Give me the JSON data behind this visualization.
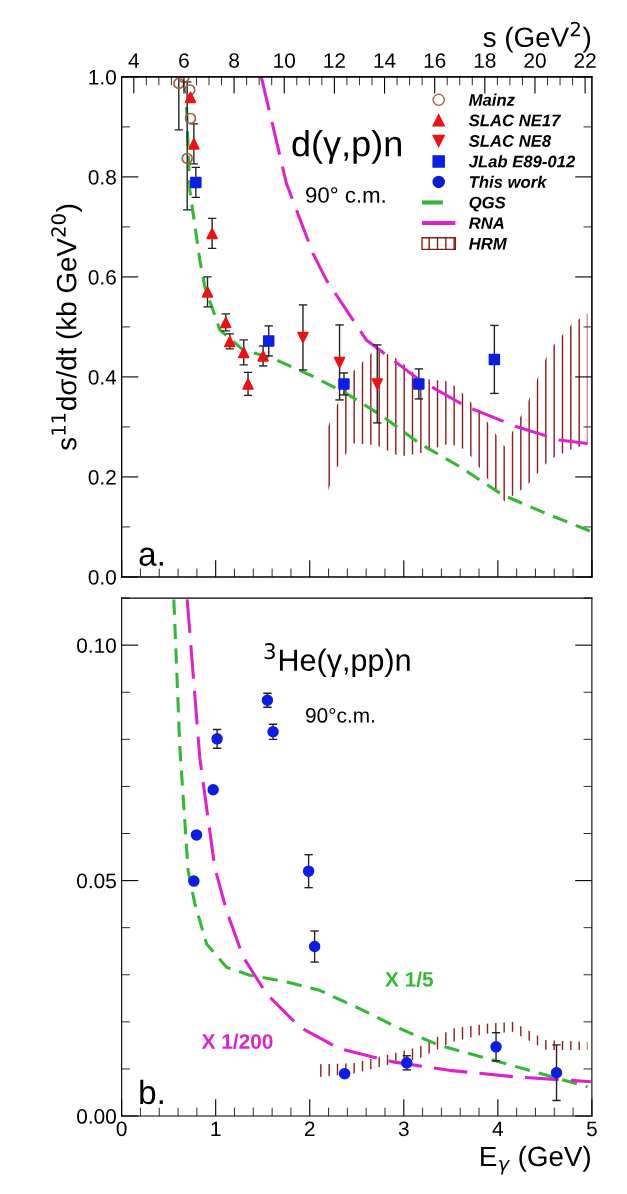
{
  "chart_data": [
    {
      "type": "scatter",
      "ylabel": "s$^{11}$dσ/dt (kb GeV$^{20}$)",
      "x2label": "s (GeV$^{2}$)",
      "xlim": [
        0,
        5
      ],
      "xticks": [
        0,
        1,
        2,
        3,
        4,
        5
      ],
      "ylim": [
        0,
        1.0
      ],
      "yticks": [
        {
          "value": 0,
          "label": "0.0"
        },
        0.2,
        0.4,
        0.6,
        0.8,
        {
          "value": 1.0,
          "label": "1.0"
        }
      ],
      "x2lim": [
        3.515,
        22.27
      ],
      "x2ticks": [
        4,
        6,
        8,
        10,
        12,
        14,
        16,
        18,
        20,
        22
      ],
      "tick_labels": "y",
      "legend": "top right",
      "grid": false,
      "annotations": [
        "d(γ,p)n",
        "90° c.m.",
        "a."
      ],
      "series": [
        {
          "name": "Mainz",
          "marker": "open_circle",
          "color": "#a0604a",
          "x": [
            0.608,
            0.661,
            0.725,
            0.732,
            0.697
          ],
          "values": [
            0.987,
            0.999,
            0.974,
            0.917,
            0.837
          ],
          "errors": [
            [
              0.894,
              1.0
            ],
            null,
            null,
            null,
            [
              0.734,
              0.99
            ]
          ]
        },
        {
          "name": "SLAC NE17",
          "marker": "triangle",
          "color": "#ee1111",
          "x": [
            0.732,
            0.768,
            0.962,
            0.913,
            1.107,
            1.15,
            1.298,
            1.344,
            1.504
          ],
          "values": [
            0.959,
            0.866,
            0.687,
            0.57,
            0.509,
            0.471,
            0.449,
            0.386,
            0.442
          ],
          "errors": [
            null,
            0.04,
            0.03,
            0.03,
            0.017,
            0.015,
            0.025,
            0.023,
            0.02
          ]
        },
        {
          "name": "SLAC NE8",
          "marker": "triangle_down",
          "color": "#ee1111",
          "x": [
            1.928,
            2.317,
            2.718
          ],
          "values": [
            0.479,
            0.429,
            0.386
          ],
          "errors": [
            0.065,
            0.075,
            0.078
          ]
        },
        {
          "name": "JLab E89-012",
          "marker": "square",
          "color": "#0a1ee6",
          "x": [
            0.789,
            1.564,
            2.364,
            3.16,
            3.963
          ],
          "values": [
            0.789,
            0.472,
            0.386,
            0.386,
            0.435
          ],
          "errors": [
            0.03,
            0.03,
            0.022,
            0.03,
            0.068
          ]
        },
        {
          "name": "This work",
          "marker": "circle",
          "color": "#0a1ecc"
        },
        {
          "name": "QGS",
          "type": "line",
          "line_style": "dashed",
          "color": "#33b833",
          "x": [
            0.69,
            0.725,
            0.831,
            0.884,
            1.044,
            1.291,
            1.61,
            2.034,
            2.39,
            2.777,
            3.167,
            3.591,
            4.051,
            4.512,
            4.99
          ],
          "values": [
            0.94,
            0.774,
            0.634,
            0.581,
            0.494,
            0.454,
            0.437,
            0.401,
            0.367,
            0.321,
            0.267,
            0.221,
            0.164,
            0.127,
            0.091
          ]
        },
        {
          "name": "RNA",
          "type": "line",
          "line_style": "longdash",
          "color": "#dd22cc",
          "x": [
            1.486,
            1.752,
            2.034,
            2.176,
            2.601,
            3.167,
            3.662,
            4.193,
            4.653,
            4.953
          ],
          "values": [
            0.999,
            0.787,
            0.647,
            0.594,
            0.474,
            0.394,
            0.341,
            0.301,
            0.274,
            0.267
          ]
        },
        {
          "name": "HRM",
          "type": "area",
          "color": "#8b1a1a",
          "x": [
            2.158,
            2.282,
            2.459,
            2.707,
            2.954,
            3.167,
            3.485,
            3.662,
            3.874,
            4.069,
            4.299,
            4.547,
            4.794,
            4.953
          ],
          "values": [
            null,
            null,
            null,
            null,
            null,
            null,
            null,
            null,
            null,
            null,
            null,
            null,
            null,
            null
          ],
          "upper": [
            0.284,
            0.341,
            0.411,
            0.457,
            0.434,
            0.397,
            0.391,
            0.361,
            0.314,
            0.261,
            0.341,
            0.454,
            0.507,
            0.527
          ],
          "lower": [
            0.154,
            0.217,
            0.267,
            0.264,
            0.241,
            0.247,
            0.267,
            0.254,
            0.201,
            0.151,
            0.181,
            0.234,
            0.257,
            0.264
          ]
        }
      ]
    },
    {
      "type": "scatter",
      "xlabel": "E$_{γ}$ (GeV)",
      "xlim": [
        0,
        5
      ],
      "xticks": [
        0,
        1,
        2,
        3,
        4,
        5
      ],
      "ylim": [
        0,
        0.11
      ],
      "yticks": [
        {
          "value": 0,
          "label": "0.00"
        },
        {
          "value": 0.05,
          "label": "0.05"
        },
        {
          "value": 0.1,
          "label": "0.10"
        }
      ],
      "legend": false,
      "grid": false,
      "annotations": [
        "$^{3}$He(γ,pp)n",
        "90°c.m.",
        "b."
      ],
      "series": [
        {
          "marker": "circle",
          "color": "#0a1ee6",
          "x": [
            1.55,
            1.61,
            1.015,
            0.973,
            0.796,
            0.768,
            1.988,
            2.052,
            2.371,
            3.032,
            3.981,
            4.624
          ],
          "values": [
            0.0883,
            0.0816,
            0.0801,
            0.0693,
            0.0597,
            0.0499,
            0.052,
            0.036,
            0.009,
            0.0113,
            0.0147,
            0.0092
          ],
          "errors": [
            0.0015,
            0.0016,
            0.002,
            null,
            null,
            null,
            0.0035,
            0.0033,
            null,
            0.0015,
            0.003,
            0.0059
          ]
        },
        {
          "name": "X 1/5",
          "type": "line",
          "line_style": "dashed",
          "color": "#33b833",
          "x": [
            0.555,
            0.619,
            0.707,
            0.778,
            0.902,
            1.115,
            1.362,
            1.752,
            2.105,
            2.53,
            2.954,
            3.379,
            3.945,
            4.512,
            4.953
          ],
          "values": [
            0.1097,
            0.0782,
            0.0521,
            0.0451,
            0.0366,
            0.0316,
            0.0299,
            0.0285,
            0.0267,
            0.0228,
            0.0186,
            0.015,
            0.0119,
            0.0087,
            0.0062
          ]
        },
        {
          "name": "X 1/200",
          "type": "line",
          "line_style": "longdash",
          "color": "#dd22cc",
          "x": [
            0.697,
            0.831,
            0.99,
            1.115,
            1.291,
            1.539,
            1.893,
            2.317,
            2.883,
            3.485,
            4.193,
            4.989
          ],
          "values": [
            0.1097,
            0.0761,
            0.0528,
            0.0436,
            0.0338,
            0.026,
            0.0189,
            0.0143,
            0.0115,
            0.0097,
            0.0083,
            0.0073
          ]
        },
        {
          "type": "area",
          "color": "#8b1a1a",
          "x": [
            2.105,
            2.459,
            2.813,
            3.167,
            3.521,
            3.874,
            4.157,
            4.512,
            4.953
          ],
          "values": [
            null,
            null,
            null,
            null,
            null,
            null,
            null,
            null,
            null
          ],
          "upper": [
            0.011,
            0.0112,
            0.0129,
            0.0147,
            0.0186,
            0.0196,
            0.02,
            0.0161,
            0.0157
          ],
          "lower": [
            0.0083,
            0.009,
            0.0108,
            0.0122,
            0.0158,
            0.0175,
            0.0179,
            0.014,
            0.014
          ]
        }
      ]
    }
  ]
}
